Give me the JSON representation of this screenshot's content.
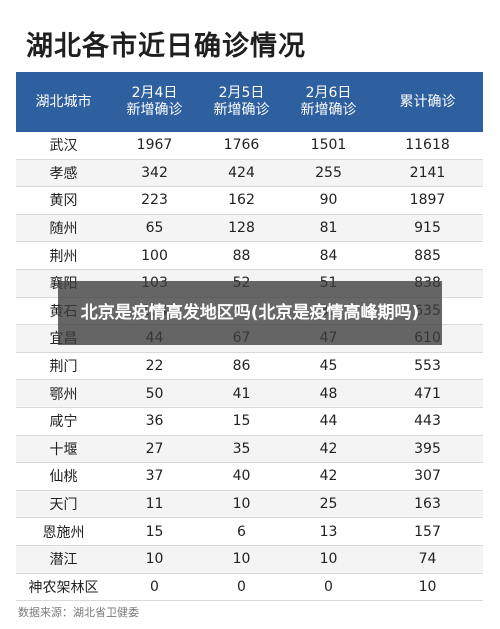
{
  "title": "湖北各市近日确诊情况",
  "table": {
    "headers": [
      {
        "line1": "湖北城市",
        "line2": ""
      },
      {
        "line1": "2月4日",
        "line2": "新增确诊"
      },
      {
        "line1": "2月5日",
        "line2": "新增确诊"
      },
      {
        "line1": "2月6日",
        "line2": "新增确诊"
      },
      {
        "line1": "累计确诊",
        "line2": ""
      }
    ],
    "rows": [
      [
        "武汉",
        "1967",
        "1766",
        "1501",
        "11618"
      ],
      [
        "孝感",
        "342",
        "424",
        "255",
        "2141"
      ],
      [
        "黄冈",
        "223",
        "162",
        "90",
        "1897"
      ],
      [
        "随州",
        "65",
        "128",
        "81",
        "915"
      ],
      [
        "荆州",
        "100",
        "88",
        "84",
        "885"
      ],
      [
        "襄阳",
        "103",
        "52",
        "51",
        "838"
      ],
      [
        "黄石",
        "104",
        "57",
        "37",
        "635"
      ],
      [
        "宜昌",
        "44",
        "67",
        "47",
        "610"
      ],
      [
        "荆门",
        "22",
        "86",
        "45",
        "553"
      ],
      [
        "鄂州",
        "50",
        "41",
        "48",
        "471"
      ],
      [
        "咸宁",
        "36",
        "15",
        "44",
        "443"
      ],
      [
        "十堰",
        "27",
        "35",
        "42",
        "395"
      ],
      [
        "仙桃",
        "37",
        "40",
        "42",
        "307"
      ],
      [
        "天门",
        "11",
        "10",
        "25",
        "163"
      ],
      [
        "恩施州",
        "15",
        "6",
        "13",
        "157"
      ],
      [
        "潜江",
        "10",
        "10",
        "10",
        "74"
      ],
      [
        "神农架林区",
        "0",
        "0",
        "0",
        "10"
      ]
    ]
  },
  "source": "数据来源：湖北省卫健委",
  "overlay_text": "北京是疫情高发地区吗(北京是疫情高峰期吗)"
}
